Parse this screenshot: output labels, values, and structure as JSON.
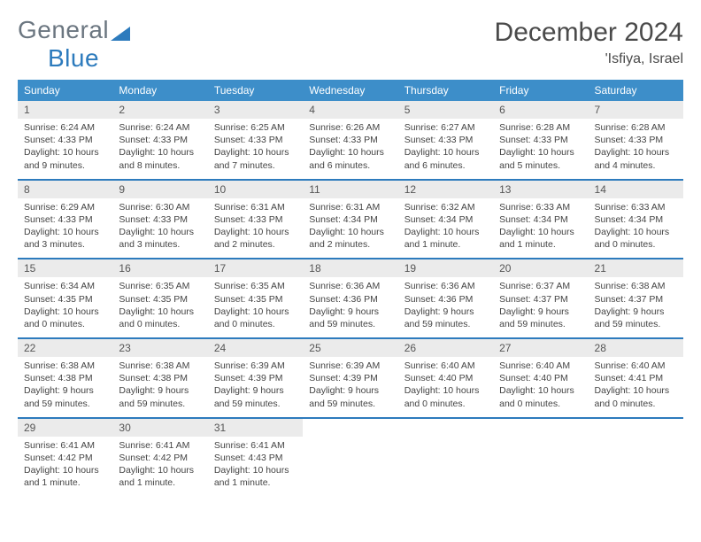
{
  "logo": {
    "general": "General",
    "blue": "Blue"
  },
  "title": "December 2024",
  "location": "'Isfiya, Israel",
  "colors": {
    "header_bg": "#3d8ec9",
    "header_text": "#ffffff",
    "rule": "#2d7bbd",
    "date_bg": "#ebebeb",
    "text": "#444444",
    "logo_blue": "#2d7bbd",
    "logo_gray": "#6b7680"
  },
  "day_names": [
    "Sunday",
    "Monday",
    "Tuesday",
    "Wednesday",
    "Thursday",
    "Friday",
    "Saturday"
  ],
  "weeks": [
    [
      {
        "d": "1",
        "sr": "Sunrise: 6:24 AM",
        "ss": "Sunset: 4:33 PM",
        "dl1": "Daylight: 10 hours",
        "dl2": "and 9 minutes."
      },
      {
        "d": "2",
        "sr": "Sunrise: 6:24 AM",
        "ss": "Sunset: 4:33 PM",
        "dl1": "Daylight: 10 hours",
        "dl2": "and 8 minutes."
      },
      {
        "d": "3",
        "sr": "Sunrise: 6:25 AM",
        "ss": "Sunset: 4:33 PM",
        "dl1": "Daylight: 10 hours",
        "dl2": "and 7 minutes."
      },
      {
        "d": "4",
        "sr": "Sunrise: 6:26 AM",
        "ss": "Sunset: 4:33 PM",
        "dl1": "Daylight: 10 hours",
        "dl2": "and 6 minutes."
      },
      {
        "d": "5",
        "sr": "Sunrise: 6:27 AM",
        "ss": "Sunset: 4:33 PM",
        "dl1": "Daylight: 10 hours",
        "dl2": "and 6 minutes."
      },
      {
        "d": "6",
        "sr": "Sunrise: 6:28 AM",
        "ss": "Sunset: 4:33 PM",
        "dl1": "Daylight: 10 hours",
        "dl2": "and 5 minutes."
      },
      {
        "d": "7",
        "sr": "Sunrise: 6:28 AM",
        "ss": "Sunset: 4:33 PM",
        "dl1": "Daylight: 10 hours",
        "dl2": "and 4 minutes."
      }
    ],
    [
      {
        "d": "8",
        "sr": "Sunrise: 6:29 AM",
        "ss": "Sunset: 4:33 PM",
        "dl1": "Daylight: 10 hours",
        "dl2": "and 3 minutes."
      },
      {
        "d": "9",
        "sr": "Sunrise: 6:30 AM",
        "ss": "Sunset: 4:33 PM",
        "dl1": "Daylight: 10 hours",
        "dl2": "and 3 minutes."
      },
      {
        "d": "10",
        "sr": "Sunrise: 6:31 AM",
        "ss": "Sunset: 4:33 PM",
        "dl1": "Daylight: 10 hours",
        "dl2": "and 2 minutes."
      },
      {
        "d": "11",
        "sr": "Sunrise: 6:31 AM",
        "ss": "Sunset: 4:34 PM",
        "dl1": "Daylight: 10 hours",
        "dl2": "and 2 minutes."
      },
      {
        "d": "12",
        "sr": "Sunrise: 6:32 AM",
        "ss": "Sunset: 4:34 PM",
        "dl1": "Daylight: 10 hours",
        "dl2": "and 1 minute."
      },
      {
        "d": "13",
        "sr": "Sunrise: 6:33 AM",
        "ss": "Sunset: 4:34 PM",
        "dl1": "Daylight: 10 hours",
        "dl2": "and 1 minute."
      },
      {
        "d": "14",
        "sr": "Sunrise: 6:33 AM",
        "ss": "Sunset: 4:34 PM",
        "dl1": "Daylight: 10 hours",
        "dl2": "and 0 minutes."
      }
    ],
    [
      {
        "d": "15",
        "sr": "Sunrise: 6:34 AM",
        "ss": "Sunset: 4:35 PM",
        "dl1": "Daylight: 10 hours",
        "dl2": "and 0 minutes."
      },
      {
        "d": "16",
        "sr": "Sunrise: 6:35 AM",
        "ss": "Sunset: 4:35 PM",
        "dl1": "Daylight: 10 hours",
        "dl2": "and 0 minutes."
      },
      {
        "d": "17",
        "sr": "Sunrise: 6:35 AM",
        "ss": "Sunset: 4:35 PM",
        "dl1": "Daylight: 10 hours",
        "dl2": "and 0 minutes."
      },
      {
        "d": "18",
        "sr": "Sunrise: 6:36 AM",
        "ss": "Sunset: 4:36 PM",
        "dl1": "Daylight: 9 hours",
        "dl2": "and 59 minutes."
      },
      {
        "d": "19",
        "sr": "Sunrise: 6:36 AM",
        "ss": "Sunset: 4:36 PM",
        "dl1": "Daylight: 9 hours",
        "dl2": "and 59 minutes."
      },
      {
        "d": "20",
        "sr": "Sunrise: 6:37 AM",
        "ss": "Sunset: 4:37 PM",
        "dl1": "Daylight: 9 hours",
        "dl2": "and 59 minutes."
      },
      {
        "d": "21",
        "sr": "Sunrise: 6:38 AM",
        "ss": "Sunset: 4:37 PM",
        "dl1": "Daylight: 9 hours",
        "dl2": "and 59 minutes."
      }
    ],
    [
      {
        "d": "22",
        "sr": "Sunrise: 6:38 AM",
        "ss": "Sunset: 4:38 PM",
        "dl1": "Daylight: 9 hours",
        "dl2": "and 59 minutes."
      },
      {
        "d": "23",
        "sr": "Sunrise: 6:38 AM",
        "ss": "Sunset: 4:38 PM",
        "dl1": "Daylight: 9 hours",
        "dl2": "and 59 minutes."
      },
      {
        "d": "24",
        "sr": "Sunrise: 6:39 AM",
        "ss": "Sunset: 4:39 PM",
        "dl1": "Daylight: 9 hours",
        "dl2": "and 59 minutes."
      },
      {
        "d": "25",
        "sr": "Sunrise: 6:39 AM",
        "ss": "Sunset: 4:39 PM",
        "dl1": "Daylight: 9 hours",
        "dl2": "and 59 minutes."
      },
      {
        "d": "26",
        "sr": "Sunrise: 6:40 AM",
        "ss": "Sunset: 4:40 PM",
        "dl1": "Daylight: 10 hours",
        "dl2": "and 0 minutes."
      },
      {
        "d": "27",
        "sr": "Sunrise: 6:40 AM",
        "ss": "Sunset: 4:40 PM",
        "dl1": "Daylight: 10 hours",
        "dl2": "and 0 minutes."
      },
      {
        "d": "28",
        "sr": "Sunrise: 6:40 AM",
        "ss": "Sunset: 4:41 PM",
        "dl1": "Daylight: 10 hours",
        "dl2": "and 0 minutes."
      }
    ],
    [
      {
        "d": "29",
        "sr": "Sunrise: 6:41 AM",
        "ss": "Sunset: 4:42 PM",
        "dl1": "Daylight: 10 hours",
        "dl2": "and 1 minute."
      },
      {
        "d": "30",
        "sr": "Sunrise: 6:41 AM",
        "ss": "Sunset: 4:42 PM",
        "dl1": "Daylight: 10 hours",
        "dl2": "and 1 minute."
      },
      {
        "d": "31",
        "sr": "Sunrise: 6:41 AM",
        "ss": "Sunset: 4:43 PM",
        "dl1": "Daylight: 10 hours",
        "dl2": "and 1 minute."
      },
      {
        "d": ""
      },
      {
        "d": ""
      },
      {
        "d": ""
      },
      {
        "d": ""
      }
    ]
  ]
}
